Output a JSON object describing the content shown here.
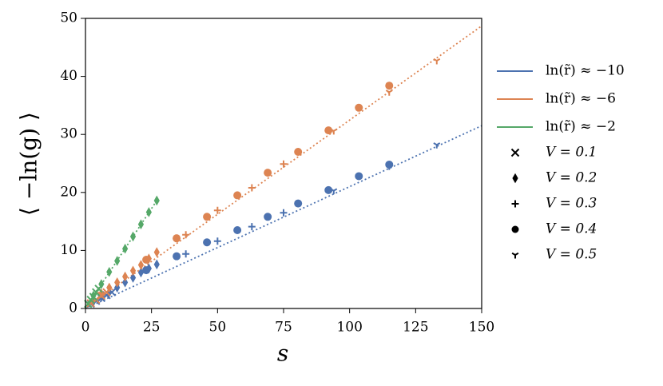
{
  "chart_data": {
    "type": "scatter",
    "xlabel": "s",
    "ylabel": "⟨ −ln(g) ⟩",
    "xlim": [
      0,
      150
    ],
    "ylim": [
      0,
      50
    ],
    "xticks": [
      0,
      25,
      50,
      75,
      100,
      125,
      150
    ],
    "yticks": [
      0,
      10,
      20,
      30,
      40,
      50
    ],
    "legend_lines": [
      {
        "label": "ln(r̃) ≈ −10",
        "color": "#4c72b0"
      },
      {
        "label": "ln(r̃) ≈ −6",
        "color": "#dd8452"
      },
      {
        "label": "ln(r̃) ≈ −2",
        "color": "#55a868"
      }
    ],
    "legend_markers": [
      {
        "label": "V = 0.1",
        "marker": "x"
      },
      {
        "label": "V = 0.2",
        "marker": "diamond"
      },
      {
        "label": "V = 0.3",
        "marker": "plus"
      },
      {
        "label": "V = 0.4",
        "marker": "circle"
      },
      {
        "label": "V = 0.5",
        "marker": "tri_down"
      }
    ],
    "fit_lines": [
      {
        "color": "#4c72b0",
        "x": [
          0,
          150
        ],
        "values": [
          0,
          31.5
        ]
      },
      {
        "color": "#dd8452",
        "x": [
          0,
          150
        ],
        "values": [
          0,
          48.7
        ]
      },
      {
        "color": "#55a868",
        "x": [
          0,
          27
        ],
        "values": [
          0,
          18.6
        ]
      }
    ],
    "series": [
      {
        "color": "#4c72b0",
        "marker": "x",
        "x": [
          2,
          4,
          6,
          8,
          10
        ],
        "values": [
          0.8,
          1.3,
          1.8,
          2.3,
          2.8
        ]
      },
      {
        "color": "#4c72b0",
        "marker": "diamond",
        "x": [
          3,
          6,
          9,
          12,
          15,
          18,
          21,
          24,
          27
        ],
        "values": [
          1.2,
          2.0,
          2.8,
          3.6,
          4.5,
          5.3,
          6.2,
          6.9,
          7.6
        ]
      },
      {
        "color": "#4c72b0",
        "marker": "plus",
        "x": [
          38,
          50,
          63,
          75
        ],
        "values": [
          9.4,
          11.6,
          14.1,
          16.5
        ]
      },
      {
        "color": "#4c72b0",
        "marker": "circle",
        "x": [
          23,
          34.5,
          46,
          57.5,
          69,
          80.5,
          92,
          103.5,
          115
        ],
        "values": [
          6.6,
          9.0,
          11.4,
          13.5,
          15.8,
          18.1,
          20.4,
          22.8,
          24.8
        ]
      },
      {
        "color": "#4c72b0",
        "marker": "tri_down",
        "x": [
          94,
          115,
          133
        ],
        "values": [
          20.3,
          24.5,
          28.2
        ]
      },
      {
        "color": "#dd8452",
        "marker": "x",
        "x": [
          2,
          4,
          6,
          8
        ],
        "values": [
          0.9,
          1.5,
          2.2,
          2.8
        ]
      },
      {
        "color": "#dd8452",
        "marker": "diamond",
        "x": [
          3,
          6,
          9,
          12,
          15,
          18,
          21,
          24,
          27
        ],
        "values": [
          1.5,
          2.6,
          3.6,
          4.5,
          5.5,
          6.5,
          7.5,
          8.6,
          9.7
        ]
      },
      {
        "color": "#dd8452",
        "marker": "plus",
        "x": [
          38,
          50,
          63,
          75
        ],
        "values": [
          12.7,
          16.9,
          20.8,
          24.9
        ]
      },
      {
        "color": "#dd8452",
        "marker": "circle",
        "x": [
          23,
          34.5,
          46,
          57.5,
          69,
          80.5,
          92,
          103.5,
          115
        ],
        "values": [
          8.4,
          12.1,
          15.8,
          19.5,
          23.4,
          27.0,
          30.7,
          34.6,
          38.4
        ]
      },
      {
        "color": "#dd8452",
        "marker": "tri_down",
        "x": [
          94,
          115,
          133
        ],
        "values": [
          30.6,
          37.3,
          42.7
        ]
      },
      {
        "color": "#55a868",
        "marker": "x",
        "x": [
          1,
          2,
          3,
          4,
          5
        ],
        "values": [
          0.8,
          1.5,
          2.0,
          2.8,
          3.4
        ]
      },
      {
        "color": "#55a868",
        "marker": "diamond",
        "x": [
          3,
          6,
          9,
          12,
          15,
          18,
          21,
          24,
          27
        ],
        "values": [
          2.2,
          4.2,
          6.3,
          8.2,
          10.3,
          12.4,
          14.5,
          16.6,
          18.6
        ]
      }
    ]
  }
}
